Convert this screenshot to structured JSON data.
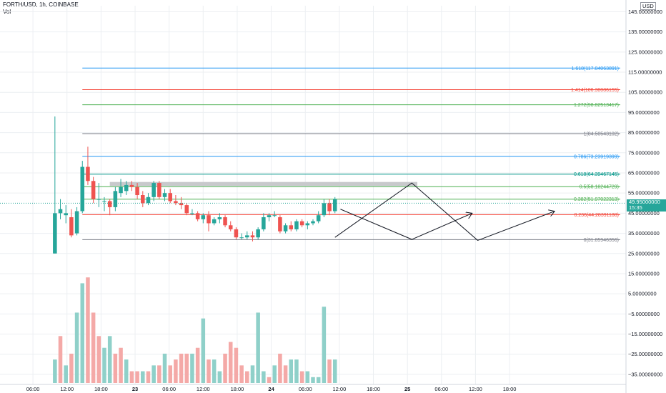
{
  "header": {
    "symbol": "FORTH/USD, 1h, COINBASE",
    "volume_label": "Vol"
  },
  "currency": "USD",
  "last_price": {
    "value": "49.95000000",
    "countdown": "15:35",
    "color": "#26a69a"
  },
  "colors": {
    "up": "#26a69a",
    "down": "#ef5350",
    "up_vol": "#8fd0c9",
    "down_vol": "#f4a9a7",
    "grid": "#eceff2",
    "axis": "#d1d4dc"
  },
  "chart_data": {
    "type": "candlestick",
    "interval": "1h",
    "y_axis": {
      "ticks": [
        "145.00000000",
        "135.00000000",
        "125.00000000",
        "115.00000000",
        "105.00000000",
        "95.00000000",
        "85.00000000",
        "75.00000000",
        "65.00000000",
        "55.00000000",
        "45.00000000",
        "35.00000000",
        "25.00000000",
        "15.00000000",
        "5.00000000",
        "−5.00000000",
        "−15.00000000",
        "−25.00000000",
        "−35.00000000"
      ],
      "range": [
        -40,
        148
      ]
    },
    "x_axis": {
      "ticks": [
        "06:00",
        "12:00",
        "18:00",
        "23",
        "06:00",
        "12:00",
        "18:00",
        "24",
        "06:00",
        "12:00",
        "18:00",
        "25",
        "06:00",
        "12:00",
        "18:00"
      ],
      "range_hours": [
        -10,
        104
      ]
    },
    "candles": [
      {
        "t": 0,
        "o": 25,
        "h": 93,
        "l": 25,
        "c": 45
      },
      {
        "t": 1,
        "o": 45,
        "h": 52,
        "l": 42,
        "c": 47
      },
      {
        "t": 2,
        "o": 44,
        "h": 49,
        "l": 40,
        "c": 45
      },
      {
        "t": 3,
        "o": 43,
        "h": 47,
        "l": 33,
        "c": 34
      },
      {
        "t": 4,
        "o": 35,
        "h": 48,
        "l": 34,
        "c": 46
      },
      {
        "t": 5,
        "o": 46,
        "h": 71,
        "l": 45,
        "c": 68
      },
      {
        "t": 6,
        "o": 68,
        "h": 78,
        "l": 59,
        "c": 61
      },
      {
        "t": 7,
        "o": 61,
        "h": 63,
        "l": 50,
        "c": 52
      },
      {
        "t": 8,
        "o": 52,
        "h": 60,
        "l": 48,
        "c": 52
      },
      {
        "t": 9,
        "o": 51,
        "h": 53,
        "l": 46,
        "c": 51
      },
      {
        "t": 10,
        "o": 51,
        "h": 52,
        "l": 44,
        "c": 48
      },
      {
        "t": 11,
        "o": 48,
        "h": 58,
        "l": 46,
        "c": 56
      },
      {
        "t": 12,
        "o": 55,
        "h": 62,
        "l": 53,
        "c": 58
      },
      {
        "t": 13,
        "o": 56,
        "h": 61,
        "l": 54,
        "c": 59
      },
      {
        "t": 14,
        "o": 59,
        "h": 61,
        "l": 56,
        "c": 58
      },
      {
        "t": 15,
        "o": 58,
        "h": 60,
        "l": 52,
        "c": 54
      },
      {
        "t": 16,
        "o": 54,
        "h": 56,
        "l": 48,
        "c": 50
      },
      {
        "t": 17,
        "o": 50,
        "h": 55,
        "l": 49,
        "c": 53
      },
      {
        "t": 18,
        "o": 53,
        "h": 61,
        "l": 51,
        "c": 60
      },
      {
        "t": 19,
        "o": 60,
        "h": 61,
        "l": 52,
        "c": 53
      },
      {
        "t": 20,
        "o": 53,
        "h": 57,
        "l": 51,
        "c": 55
      },
      {
        "t": 21,
        "o": 55,
        "h": 57,
        "l": 50,
        "c": 51
      },
      {
        "t": 22,
        "o": 51,
        "h": 54,
        "l": 49,
        "c": 50
      },
      {
        "t": 23,
        "o": 50,
        "h": 53,
        "l": 47,
        "c": 49
      },
      {
        "t": 24,
        "o": 49,
        "h": 50,
        "l": 44,
        "c": 45
      },
      {
        "t": 25,
        "o": 45,
        "h": 47,
        "l": 44,
        "c": 45
      },
      {
        "t": 26,
        "o": 45,
        "h": 46,
        "l": 41,
        "c": 42
      },
      {
        "t": 27,
        "o": 42,
        "h": 45,
        "l": 40,
        "c": 44
      },
      {
        "t": 28,
        "o": 44,
        "h": 46,
        "l": 36,
        "c": 40
      },
      {
        "t": 29,
        "o": 40,
        "h": 43,
        "l": 39,
        "c": 42
      },
      {
        "t": 30,
        "o": 42,
        "h": 45,
        "l": 40,
        "c": 43
      },
      {
        "t": 31,
        "o": 43,
        "h": 44,
        "l": 38,
        "c": 39
      },
      {
        "t": 32,
        "o": 39,
        "h": 41,
        "l": 36,
        "c": 37
      },
      {
        "t": 33,
        "o": 37,
        "h": 38,
        "l": 32,
        "c": 33
      },
      {
        "t": 34,
        "o": 33,
        "h": 35,
        "l": 32,
        "c": 33
      },
      {
        "t": 35,
        "o": 33,
        "h": 36,
        "l": 32,
        "c": 34
      },
      {
        "t": 36,
        "o": 34,
        "h": 36,
        "l": 31,
        "c": 33
      },
      {
        "t": 37,
        "o": 33,
        "h": 38,
        "l": 32,
        "c": 37
      },
      {
        "t": 38,
        "o": 37,
        "h": 45,
        "l": 36,
        "c": 43
      },
      {
        "t": 39,
        "o": 43,
        "h": 45,
        "l": 41,
        "c": 44
      },
      {
        "t": 40,
        "o": 44,
        "h": 46,
        "l": 43,
        "c": 44
      },
      {
        "t": 41,
        "o": 43,
        "h": 44,
        "l": 35,
        "c": 36
      },
      {
        "t": 42,
        "o": 36,
        "h": 40,
        "l": 35,
        "c": 39
      },
      {
        "t": 43,
        "o": 39,
        "h": 41,
        "l": 36,
        "c": 37
      },
      {
        "t": 44,
        "o": 37,
        "h": 42,
        "l": 36,
        "c": 41
      },
      {
        "t": 45,
        "o": 41,
        "h": 42,
        "l": 38,
        "c": 39
      },
      {
        "t": 46,
        "o": 39,
        "h": 41,
        "l": 37,
        "c": 40
      },
      {
        "t": 47,
        "o": 40,
        "h": 42,
        "l": 39,
        "c": 41
      },
      {
        "t": 48,
        "o": 41,
        "h": 46,
        "l": 40,
        "c": 44
      },
      {
        "t": 49,
        "o": 44,
        "h": 52,
        "l": 43,
        "c": 50
      },
      {
        "t": 50,
        "o": 50,
        "h": 52,
        "l": 44,
        "c": 46
      },
      {
        "t": 51,
        "o": 46,
        "h": 53,
        "l": 45,
        "c": 52
      }
    ],
    "volume": [
      {
        "t": 0,
        "v": 4,
        "up": true
      },
      {
        "t": 1,
        "v": 8,
        "up": false
      },
      {
        "t": 2,
        "v": 3,
        "up": true
      },
      {
        "t": 3,
        "v": 5,
        "up": false
      },
      {
        "t": 4,
        "v": 12,
        "up": true
      },
      {
        "t": 5,
        "v": 17,
        "up": true
      },
      {
        "t": 6,
        "v": 18,
        "up": false
      },
      {
        "t": 7,
        "v": 12,
        "up": false
      },
      {
        "t": 8,
        "v": 8,
        "up": false
      },
      {
        "t": 9,
        "v": 6,
        "up": true
      },
      {
        "t": 10,
        "v": 8,
        "up": true
      },
      {
        "t": 11,
        "v": 5,
        "up": false
      },
      {
        "t": 12,
        "v": 6,
        "up": false
      },
      {
        "t": 13,
        "v": 4,
        "up": true
      },
      {
        "t": 14,
        "v": 2,
        "up": false
      },
      {
        "t": 15,
        "v": 2,
        "up": false
      },
      {
        "t": 16,
        "v": 2,
        "up": true
      },
      {
        "t": 17,
        "v": 2,
        "up": false
      },
      {
        "t": 18,
        "v": 3,
        "up": true
      },
      {
        "t": 19,
        "v": 3,
        "up": false
      },
      {
        "t": 20,
        "v": 5,
        "up": true
      },
      {
        "t": 21,
        "v": 3,
        "up": false
      },
      {
        "t": 22,
        "v": 4,
        "up": false
      },
      {
        "t": 23,
        "v": 5,
        "up": false
      },
      {
        "t": 24,
        "v": 5,
        "up": false
      },
      {
        "t": 25,
        "v": 5,
        "up": true
      },
      {
        "t": 26,
        "v": 6,
        "up": false
      },
      {
        "t": 27,
        "v": 11,
        "up": true
      },
      {
        "t": 28,
        "v": 4,
        "up": false
      },
      {
        "t": 29,
        "v": 4,
        "up": true
      },
      {
        "t": 30,
        "v": 2,
        "up": true
      },
      {
        "t": 31,
        "v": 5,
        "up": false
      },
      {
        "t": 32,
        "v": 7,
        "up": false
      },
      {
        "t": 33,
        "v": 6,
        "up": false
      },
      {
        "t": 34,
        "v": 3,
        "up": false
      },
      {
        "t": 35,
        "v": 2,
        "up": false
      },
      {
        "t": 36,
        "v": 3,
        "up": true
      },
      {
        "t": 37,
        "v": 12,
        "up": true
      },
      {
        "t": 38,
        "v": 2,
        "up": true
      },
      {
        "t": 39,
        "v": 1,
        "up": false
      },
      {
        "t": 40,
        "v": 3,
        "up": true
      },
      {
        "t": 41,
        "v": 5,
        "up": false
      },
      {
        "t": 42,
        "v": 3,
        "up": false
      },
      {
        "t": 43,
        "v": 4,
        "up": true
      },
      {
        "t": 44,
        "v": 4,
        "up": true
      },
      {
        "t": 45,
        "v": 2,
        "up": false
      },
      {
        "t": 46,
        "v": 2,
        "up": true
      },
      {
        "t": 47,
        "v": 1,
        "up": true
      },
      {
        "t": 48,
        "v": 1,
        "up": true
      },
      {
        "t": 49,
        "v": 13,
        "up": true
      },
      {
        "t": 50,
        "v": 4,
        "up": false
      },
      {
        "t": 51,
        "v": 4,
        "up": true
      }
    ],
    "volume_scale_max": 19,
    "fibonacci": {
      "start_hour": 5,
      "levels": [
        {
          "label": "1.618(117.04063891)",
          "value": 117.04,
          "color": "#2196f3"
        },
        {
          "label": "1.414(106.30086155)",
          "value": 106.3,
          "color": "#f44336"
        },
        {
          "label": "1.272(98.82513417)",
          "value": 98.83,
          "color": "#4caf50"
        },
        {
          "label": "1(84.50543102)",
          "value": 84.51,
          "color": "#787b86"
        },
        {
          "label": "0.786(73.23919399)",
          "value": 73.24,
          "color": "#2196f3"
        },
        {
          "label": "0.618(64.39467145)",
          "value": 64.39,
          "color": "#009688"
        },
        {
          "label": "0.5(58.18244729)",
          "value": 58.18,
          "color": "#4caf50"
        },
        {
          "label": "0.382(51.97022313)",
          "value": 51.97,
          "color": "#4caf50"
        },
        {
          "label": "0.236(44.28391188)",
          "value": 44.28,
          "color": "#f44336"
        },
        {
          "label": "0(31.85946356)",
          "value": 31.86,
          "color": "#787b86"
        }
      ]
    },
    "resistance_zone": {
      "from_hour": 10,
      "to_hour": 66,
      "low": 58.5,
      "high": 60.5
    },
    "projection_paths": [
      {
        "points": [
          [
            51,
            33
          ],
          [
            65,
            60
          ],
          [
            77,
            31.5
          ],
          [
            91,
            46
          ]
        ]
      },
      {
        "points": [
          [
            52,
            47
          ],
          [
            65,
            32
          ],
          [
            76,
            45
          ]
        ]
      }
    ],
    "last_price_value": 49.95
  }
}
